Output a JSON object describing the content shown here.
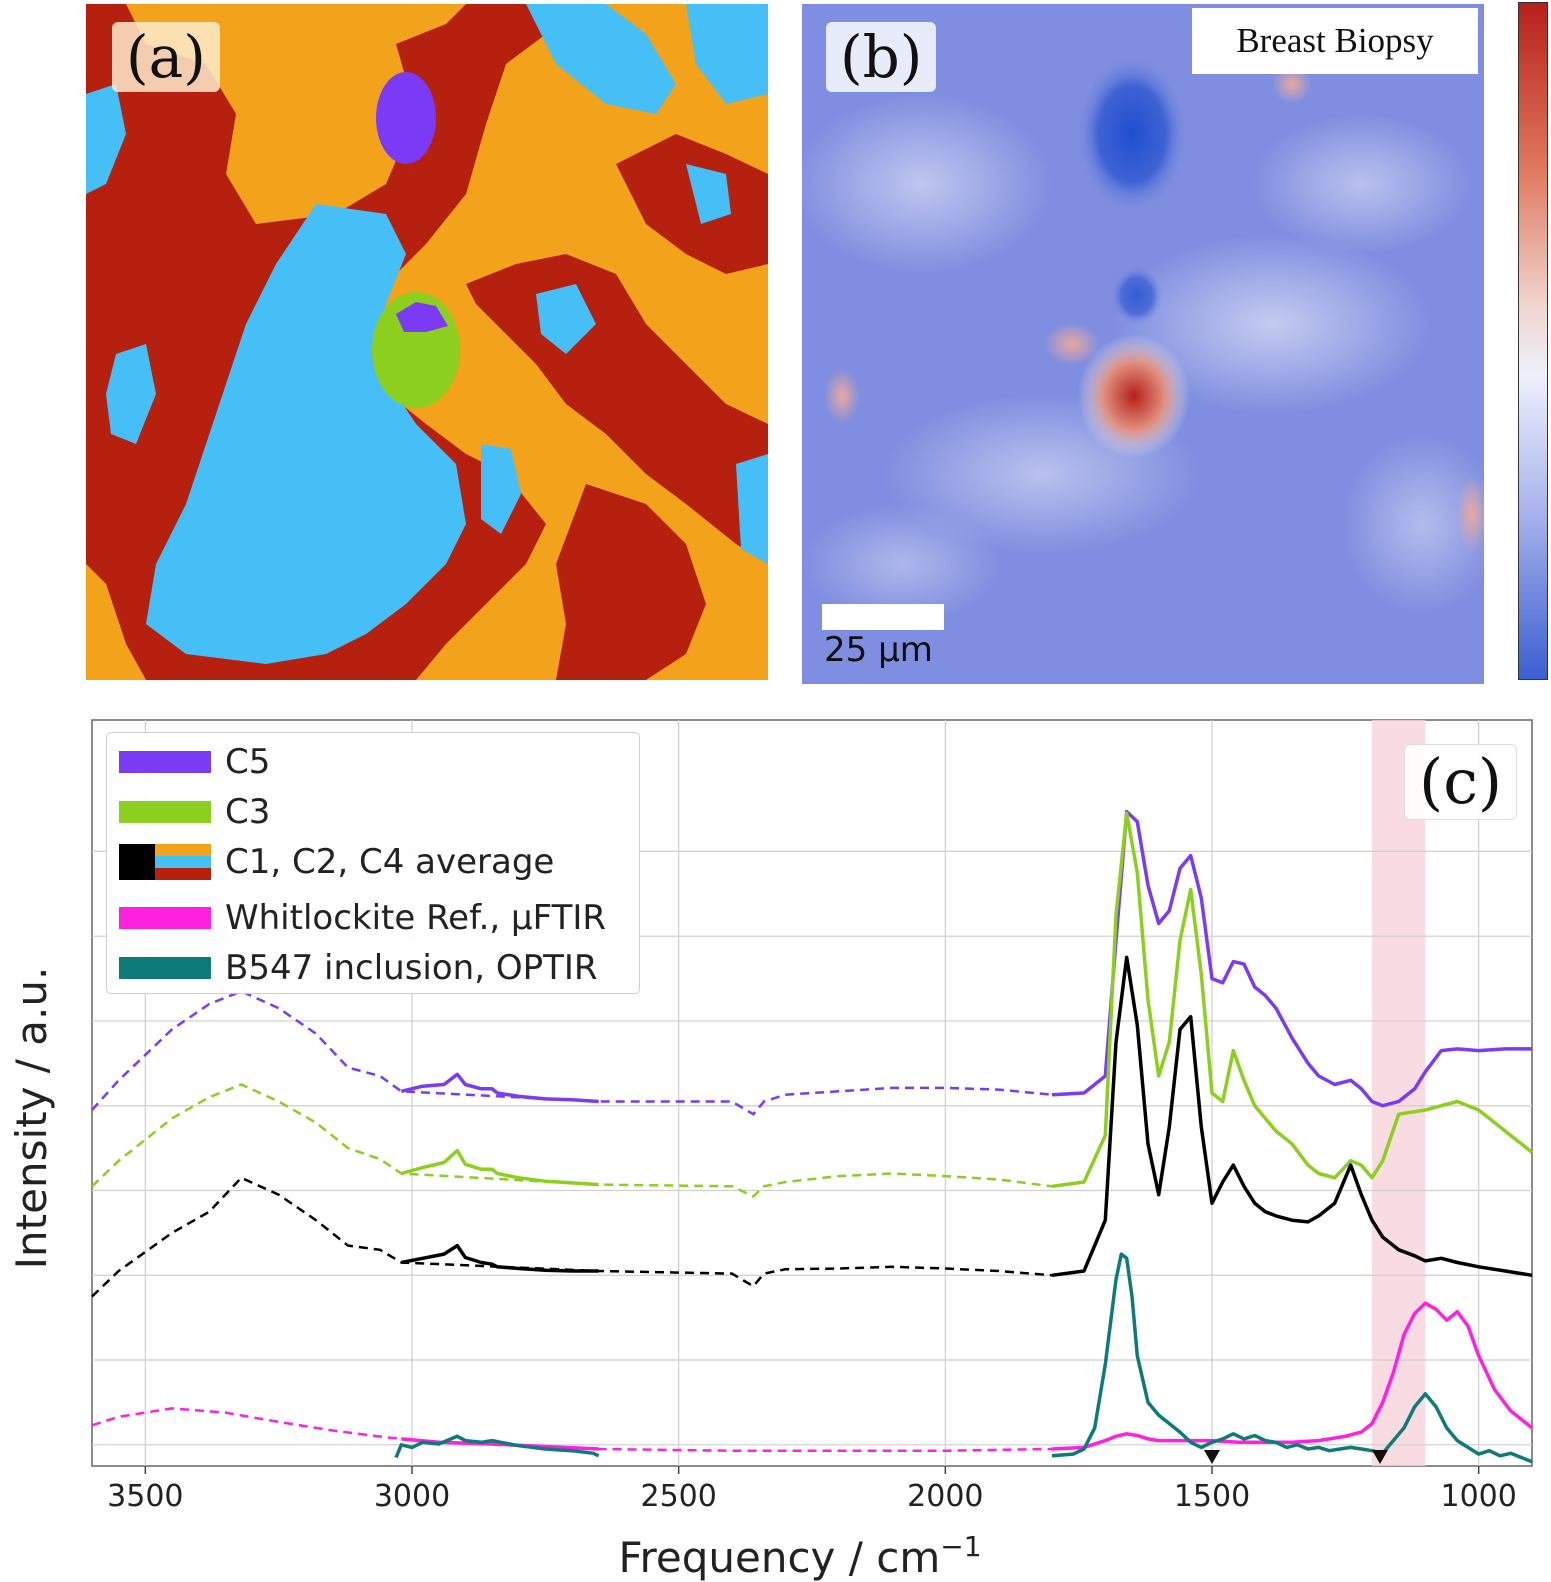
{
  "panels": {
    "a": {
      "label": "(a)"
    },
    "b": {
      "label": "(b)",
      "annotation": "Breast Biopsy",
      "scalebar_label": "25 µm"
    },
    "c": {
      "label": "(c)"
    }
  },
  "colors": {
    "cluster_orange": "#f2a21b",
    "cluster_red": "#b5200f",
    "cluster_blue": "#45bff6",
    "cluster_purple": "#7b3bf5",
    "cluster_green": "#8ccf1e",
    "map_low": "#3b5fd0",
    "map_mid": "#eef0fb",
    "map_high": "#b5201a",
    "highlight_band": "#f7d3da"
  },
  "chart_data": {
    "type": "line",
    "xlabel": "Frequency / cm",
    "xlabel_superscript": "−1",
    "ylabel": "Intensity / a.u.",
    "xlim": [
      3600,
      900
    ],
    "x_reversed": true,
    "xticks": [
      3500,
      3000,
      2500,
      2000,
      1500,
      1000
    ],
    "grid": true,
    "legend_position": "top-left",
    "highlight_band": [
      1200,
      1100
    ],
    "markers": [
      1500,
      1185
    ],
    "series": [
      {
        "name": "C5",
        "color": "#7b3bf5",
        "dashed_x": [
          3600,
          3550,
          3450,
          3380,
          3320,
          3250,
          3180,
          3120,
          3060,
          3020,
          2650,
          2400,
          2360,
          2340,
          2300,
          2200,
          2100,
          2000,
          1900,
          1800
        ],
        "dashed_y": [
          3.2,
          3.55,
          4.15,
          4.45,
          4.6,
          4.4,
          4.1,
          3.7,
          3.6,
          3.42,
          3.3,
          3.3,
          3.15,
          3.3,
          3.38,
          3.42,
          3.46,
          3.46,
          3.44,
          3.38
        ],
        "solid_x": [
          3020,
          2980,
          2940,
          2915,
          2900,
          2870,
          2850,
          2840,
          2800,
          2750,
          2700,
          2650
        ],
        "solid_y": [
          3.42,
          3.48,
          3.5,
          3.62,
          3.5,
          3.45,
          3.45,
          3.4,
          3.36,
          3.33,
          3.32,
          3.3
        ],
        "solid2_x": [
          1800,
          1740,
          1700,
          1680,
          1660,
          1640,
          1620,
          1600,
          1580,
          1560,
          1540,
          1520,
          1500,
          1480,
          1460,
          1440,
          1420,
          1400,
          1380,
          1350,
          1320,
          1300,
          1270,
          1240,
          1220,
          1200,
          1180,
          1150,
          1120,
          1100,
          1070,
          1040,
          1000,
          950,
          900
        ],
        "solid2_y": [
          3.38,
          3.4,
          3.6,
          5.2,
          6.72,
          6.6,
          5.85,
          5.4,
          5.55,
          6.05,
          6.2,
          5.7,
          4.75,
          4.7,
          4.95,
          4.92,
          4.65,
          4.55,
          4.4,
          4.05,
          3.75,
          3.6,
          3.5,
          3.55,
          3.45,
          3.3,
          3.25,
          3.3,
          3.45,
          3.65,
          3.9,
          3.92,
          3.9,
          3.92,
          3.92
        ]
      },
      {
        "name": "C3",
        "color": "#8ccf1e",
        "dashed_x": [
          3600,
          3550,
          3450,
          3380,
          3320,
          3250,
          3180,
          3120,
          3060,
          3020,
          2650,
          2400,
          2360,
          2340,
          2300,
          2200,
          2100,
          2000,
          1900,
          1800
        ],
        "dashed_y": [
          2.3,
          2.6,
          3.1,
          3.35,
          3.5,
          3.3,
          3.05,
          2.75,
          2.62,
          2.45,
          2.32,
          2.3,
          2.18,
          2.3,
          2.35,
          2.42,
          2.45,
          2.42,
          2.38,
          2.3
        ],
        "solid_x": [
          3020,
          2980,
          2940,
          2915,
          2900,
          2870,
          2850,
          2840,
          2800,
          2750,
          2700,
          2650
        ],
        "solid_y": [
          2.45,
          2.52,
          2.58,
          2.72,
          2.56,
          2.5,
          2.5,
          2.45,
          2.4,
          2.36,
          2.34,
          2.32
        ],
        "solid2_x": [
          1800,
          1740,
          1700,
          1680,
          1660,
          1640,
          1620,
          1600,
          1580,
          1560,
          1540,
          1520,
          1500,
          1480,
          1460,
          1440,
          1420,
          1400,
          1380,
          1350,
          1320,
          1300,
          1270,
          1240,
          1220,
          1200,
          1180,
          1150,
          1120,
          1100,
          1070,
          1040,
          1000,
          950,
          900
        ],
        "solid2_y": [
          2.3,
          2.35,
          2.9,
          5.5,
          6.7,
          6.0,
          4.5,
          3.6,
          4.0,
          5.2,
          5.8,
          4.8,
          3.4,
          3.3,
          3.9,
          3.55,
          3.25,
          3.1,
          2.95,
          2.8,
          2.55,
          2.45,
          2.4,
          2.6,
          2.55,
          2.4,
          2.6,
          3.15,
          3.18,
          3.2,
          3.25,
          3.3,
          3.2,
          2.95,
          2.7
        ]
      },
      {
        "name": "C1, C2, C4 average",
        "color": "#000000",
        "dashed_x": [
          3600,
          3550,
          3450,
          3380,
          3320,
          3250,
          3180,
          3120,
          3060,
          3020,
          2650,
          2400,
          2360,
          2340,
          2300,
          2200,
          2100,
          2000,
          1900,
          1800
        ],
        "dashed_y": [
          1.0,
          1.3,
          1.75,
          2.0,
          2.4,
          2.2,
          1.9,
          1.6,
          1.55,
          1.4,
          1.3,
          1.27,
          1.12,
          1.27,
          1.32,
          1.33,
          1.35,
          1.33,
          1.3,
          1.25
        ],
        "solid_x": [
          3020,
          2980,
          2940,
          2915,
          2900,
          2870,
          2850,
          2840,
          2800,
          2750,
          2700,
          2650
        ],
        "solid_y": [
          1.4,
          1.45,
          1.5,
          1.6,
          1.46,
          1.4,
          1.38,
          1.35,
          1.33,
          1.31,
          1.3,
          1.3
        ],
        "solid2_x": [
          1800,
          1740,
          1700,
          1680,
          1660,
          1640,
          1620,
          1600,
          1580,
          1560,
          1540,
          1520,
          1500,
          1480,
          1460,
          1440,
          1420,
          1400,
          1380,
          1350,
          1320,
          1300,
          1270,
          1240,
          1220,
          1200,
          1180,
          1150,
          1120,
          1100,
          1070,
          1040,
          1000,
          950,
          900
        ],
        "solid2_y": [
          1.25,
          1.3,
          1.9,
          4.0,
          5.0,
          4.2,
          2.8,
          2.2,
          3.0,
          4.15,
          4.3,
          3.0,
          2.1,
          2.35,
          2.55,
          2.3,
          2.1,
          2.0,
          1.95,
          1.9,
          1.88,
          1.95,
          2.1,
          2.55,
          2.2,
          1.9,
          1.7,
          1.55,
          1.48,
          1.42,
          1.45,
          1.4,
          1.35,
          1.3,
          1.25
        ]
      },
      {
        "name": "Whitlockite Ref., µFTIR",
        "color": "#ff21e0",
        "dashed_x": [
          3600,
          3550,
          3450,
          3350,
          3250,
          3150,
          3050,
          2950,
          2800,
          2650,
          2400,
          2200,
          2000,
          1800
        ],
        "dashed_y": [
          -0.52,
          -0.42,
          -0.32,
          -0.37,
          -0.48,
          -0.58,
          -0.66,
          -0.72,
          -0.76,
          -0.8,
          -0.82,
          -0.82,
          -0.82,
          -0.8
        ],
        "solid_x": [
          3020,
          2950,
          2850,
          2750,
          2650
        ],
        "solid_y": [
          -0.68,
          -0.72,
          -0.74,
          -0.77,
          -0.8
        ],
        "solid2_x": [
          1800,
          1740,
          1700,
          1680,
          1660,
          1640,
          1620,
          1600,
          1580,
          1560,
          1540,
          1500,
          1450,
          1400,
          1350,
          1300,
          1250,
          1220,
          1200,
          1180,
          1160,
          1140,
          1120,
          1100,
          1080,
          1060,
          1040,
          1020,
          1000,
          970,
          940,
          900
        ],
        "solid2_y": [
          -0.8,
          -0.78,
          -0.7,
          -0.65,
          -0.62,
          -0.64,
          -0.68,
          -0.7,
          -0.7,
          -0.7,
          -0.7,
          -0.7,
          -0.72,
          -0.72,
          -0.72,
          -0.7,
          -0.65,
          -0.6,
          -0.5,
          -0.25,
          0.1,
          0.55,
          0.8,
          0.92,
          0.85,
          0.72,
          0.82,
          0.65,
          0.3,
          -0.1,
          -0.35,
          -0.55
        ]
      },
      {
        "name": "B547 inclusion, OPTIR",
        "color": "#0e7a79",
        "solid_x": [
          3030,
          3020,
          3000,
          2980,
          2950,
          2915,
          2900,
          2870,
          2850,
          2800,
          2750,
          2700,
          2660,
          2650
        ],
        "solid_y": [
          -0.9,
          -0.75,
          -0.78,
          -0.72,
          -0.74,
          -0.65,
          -0.7,
          -0.72,
          -0.7,
          -0.76,
          -0.8,
          -0.82,
          -0.85,
          -0.88
        ],
        "solid2_x": [
          1800,
          1760,
          1740,
          1720,
          1700,
          1680,
          1670,
          1660,
          1650,
          1640,
          1620,
          1600,
          1580,
          1560,
          1540,
          1520,
          1500,
          1480,
          1460,
          1440,
          1420,
          1400,
          1380,
          1360,
          1340,
          1320,
          1300,
          1280,
          1260,
          1240,
          1220,
          1200,
          1180,
          1160,
          1140,
          1120,
          1100,
          1080,
          1060,
          1040,
          1020,
          1000,
          980,
          960,
          940,
          920,
          900
        ],
        "solid2_y": [
          -0.88,
          -0.86,
          -0.8,
          -0.55,
          0.2,
          1.2,
          1.5,
          1.45,
          1.0,
          0.3,
          -0.25,
          -0.4,
          -0.5,
          -0.6,
          -0.72,
          -0.78,
          -0.72,
          -0.68,
          -0.62,
          -0.68,
          -0.64,
          -0.7,
          -0.72,
          -0.78,
          -0.75,
          -0.8,
          -0.78,
          -0.82,
          -0.8,
          -0.78,
          -0.8,
          -0.82,
          -0.85,
          -0.7,
          -0.55,
          -0.3,
          -0.15,
          -0.3,
          -0.55,
          -0.7,
          -0.78,
          -0.86,
          -0.82,
          -0.88,
          -0.85,
          -0.9,
          -0.95
        ]
      }
    ]
  }
}
